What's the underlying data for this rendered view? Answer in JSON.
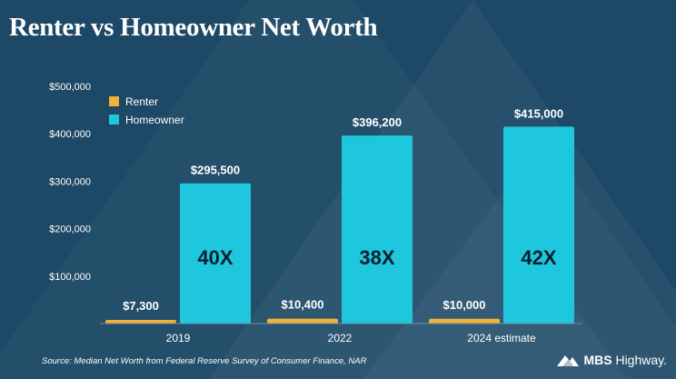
{
  "title": "Renter vs Homeowner Net Worth",
  "source": "Source: Median Net Worth from Federal Reserve Survey of Consumer Finance, NAR",
  "logo": {
    "text_bold": "MBS",
    "text_light": "Highway."
  },
  "colors": {
    "renter": "#f2b135",
    "homeowner": "#1ec7dd",
    "background": "#1d4966",
    "text": "#ffffff",
    "multiplier": "#0b1f2e"
  },
  "chart_data": {
    "type": "bar",
    "categories": [
      "2019",
      "2022",
      "2024 estimate"
    ],
    "series": [
      {
        "name": "Renter",
        "values": [
          7300,
          10400,
          10000
        ],
        "labels": [
          "$7,300",
          "$10,400",
          "$10,000"
        ]
      },
      {
        "name": "Homeowner",
        "values": [
          295500,
          396200,
          415000
        ],
        "labels": [
          "$295,500",
          "$396,200",
          "$415,000"
        ]
      }
    ],
    "multipliers": [
      "40X",
      "38X",
      "42X"
    ],
    "yticks": [
      100000,
      200000,
      300000,
      400000,
      500000
    ],
    "ytick_labels": [
      "$100,000",
      "$200,000",
      "$300,000",
      "$400,000",
      "$500,000"
    ],
    "ylim": [
      0,
      500000
    ],
    "legend_position": "top-left",
    "grid": false
  }
}
